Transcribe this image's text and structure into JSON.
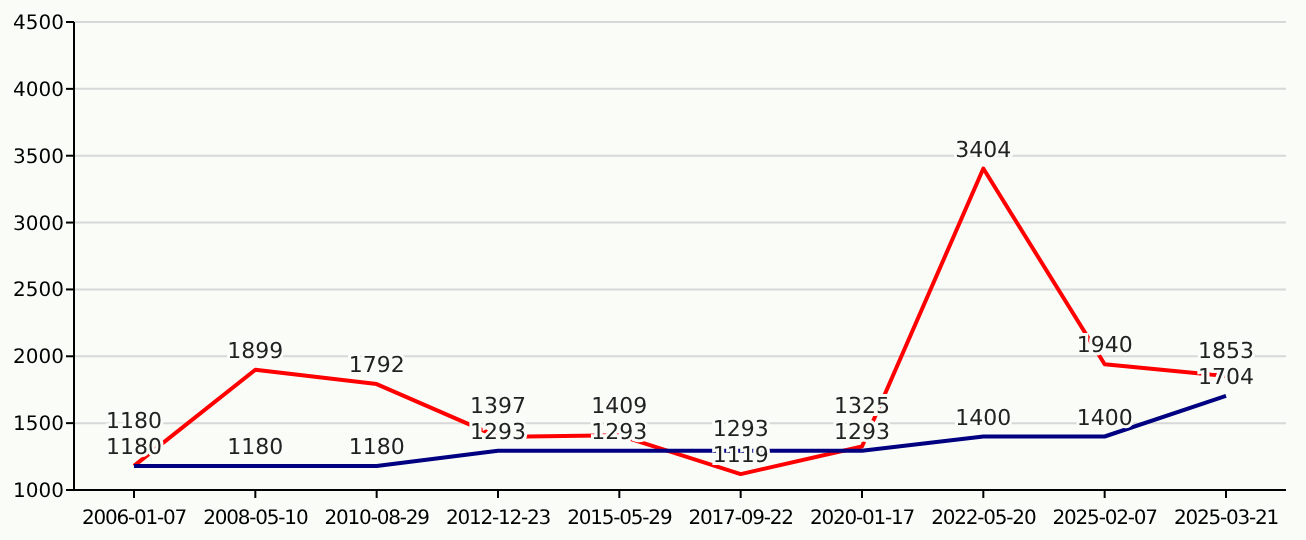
{
  "chart_data": {
    "type": "line",
    "categories": [
      "2006-01-07",
      "2008-05-10",
      "2010-08-29",
      "2012-12-23",
      "2015-05-29",
      "2017-09-22",
      "2020-01-17",
      "2022-05-20",
      "2025-02-07",
      "2025-03-21"
    ],
    "series": [
      {
        "color": "#ff0000",
        "values": [
          1180,
          1899,
          1792,
          1397,
          1409,
          1119,
          1325,
          3404,
          1940,
          1853
        ]
      },
      {
        "color": "#000080",
        "values": [
          1180,
          1180,
          1180,
          1293,
          1293,
          1293,
          1293,
          1400,
          1400,
          1704
        ]
      }
    ],
    "ylim": [
      1000,
      4500
    ],
    "yticks": [
      1000,
      1500,
      2000,
      2500,
      3000,
      3500,
      4000,
      4500
    ],
    "grid": "y",
    "data_labels": true,
    "marker": "none",
    "line_style": "solid"
  }
}
